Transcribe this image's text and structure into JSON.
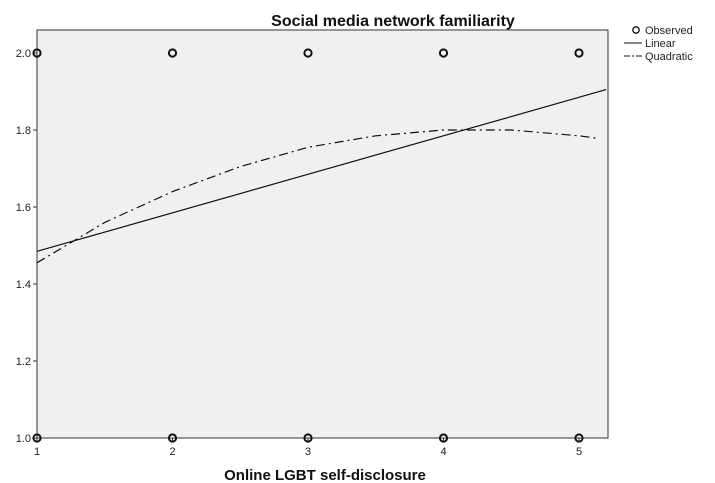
{
  "chart_data": {
    "type": "scatter",
    "title": "Social media network familiarity",
    "xlabel": "Online LGBT self-disclosure",
    "ylabel": "",
    "xlim": [
      1,
      5.2
    ],
    "ylim": [
      1.0,
      2.05
    ],
    "x_ticks": [
      "1",
      "2",
      "3",
      "4",
      "5"
    ],
    "y_ticks": [
      "1.0",
      "1.2",
      "1.4",
      "1.6",
      "1.8",
      "2.0"
    ],
    "background": "#f0f0f0",
    "grid": false,
    "legend_position": "top-right",
    "series": [
      {
        "name": "Observed",
        "kind": "points",
        "x": [
          1,
          2,
          3,
          4,
          5,
          1,
          2,
          3,
          4,
          5
        ],
        "y": [
          2.0,
          2.0,
          2.0,
          2.0,
          2.0,
          1.0,
          1.0,
          1.0,
          1.0,
          1.0
        ]
      },
      {
        "name": "Linear",
        "kind": "line",
        "style": "solid",
        "x": [
          1,
          5.2
        ],
        "y": [
          1.485,
          1.905
        ]
      },
      {
        "name": "Quadratic",
        "kind": "line",
        "style": "dashdot",
        "x": [
          1,
          1.5,
          2,
          2.5,
          3,
          3.5,
          4,
          4.5,
          5,
          5.15
        ],
        "y": [
          1.455,
          1.56,
          1.64,
          1.705,
          1.755,
          1.785,
          1.8,
          1.8,
          1.785,
          1.778
        ]
      }
    ]
  }
}
